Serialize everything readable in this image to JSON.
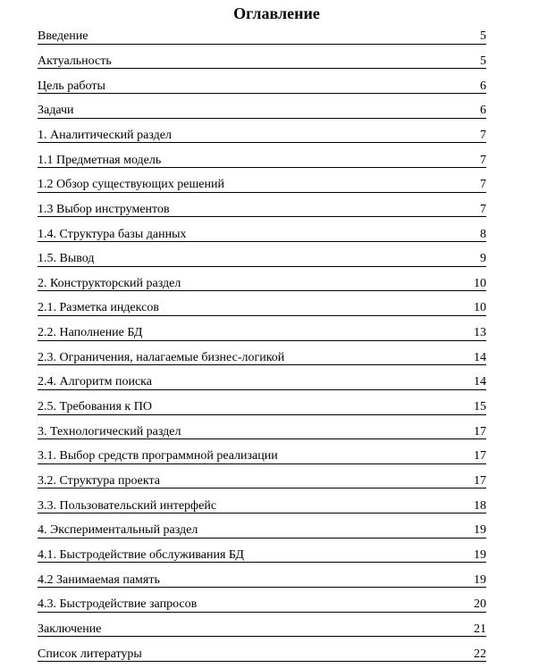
{
  "document": {
    "title": "Оглавление"
  },
  "colors": {
    "text": "#000000",
    "background": "#ffffff",
    "rule": "#000000"
  },
  "toc": {
    "entries": [
      {
        "label": "Введение",
        "page": "5"
      },
      {
        "label": "Актуальность",
        "page": "5"
      },
      {
        "label": "Цель работы",
        "page": "6"
      },
      {
        "label": "Задачи",
        "page": "6"
      },
      {
        "label": "1. Аналитический раздел",
        "page": "7"
      },
      {
        "label": "1.1 Предметная модель",
        "page": "7"
      },
      {
        "label": "1.2 Обзор существующих решений",
        "page": "7"
      },
      {
        "label": "1.3 Выбор инструментов",
        "page": "7"
      },
      {
        "label": "1.4. Структура базы данных",
        "page": "8"
      },
      {
        "label": "1.5. Вывод",
        "page": "9"
      },
      {
        "label": "2. Конструкторский раздел",
        "page": "10"
      },
      {
        "label": "2.1. Разметка индексов",
        "page": "10"
      },
      {
        "label": "2.2. Наполнение БД",
        "page": "13"
      },
      {
        "label": "2.3. Ограничения, налагаемые бизнес-логикой",
        "page": "14"
      },
      {
        "label": "2.4. Алгоритм поиска",
        "page": "14"
      },
      {
        "label": "2.5. Требования к ПО",
        "page": "15"
      },
      {
        "label": "3. Технологический раздел",
        "page": "17"
      },
      {
        "label": "3.1. Выбор средств программной реализации",
        "page": "17"
      },
      {
        "label": "3.2. Структура проекта",
        "page": "17"
      },
      {
        "label": "3.3. Пользовательский интерфейс",
        "page": "18"
      },
      {
        "label": "4. Экспериментальный раздел",
        "page": "19"
      },
      {
        "label": "4.1. Быстродействие обслуживания БД",
        "page": "19"
      },
      {
        "label": "4.2 Занимаемая память",
        "page": "19"
      },
      {
        "label": "4.3. Быстродействие запросов",
        "page": "20"
      },
      {
        "label": "Заключение",
        "page": "21"
      },
      {
        "label": "Список литературы",
        "page": "22"
      }
    ]
  }
}
